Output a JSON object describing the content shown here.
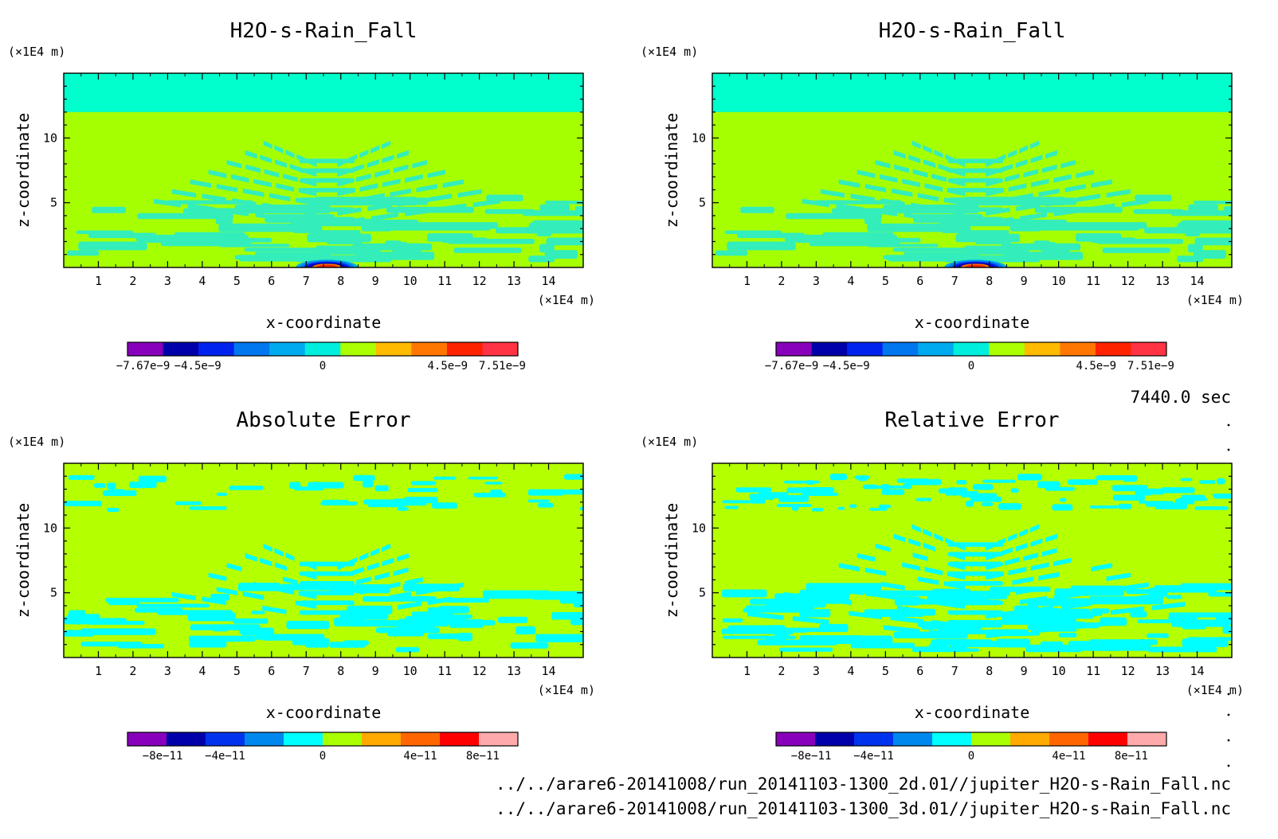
{
  "chart_data": [
    {
      "type": "heatmap",
      "title": "H2O-s-Rain_Fall",
      "xlabel": "x-coordinate",
      "ylabel": "z-coordinate",
      "x_unit": "(×1E4 m)",
      "y_unit": "(×1E4 m)",
      "xlim": [
        0,
        15
      ],
      "ylim": [
        0,
        15
      ],
      "x_ticks": [
        "1",
        "2",
        "3",
        "4",
        "5",
        "6",
        "7",
        "8",
        "9",
        "10",
        "11",
        "12",
        "13",
        "14"
      ],
      "y_ticks": [
        "5",
        "10"
      ],
      "colorbar_labels": [
        "−7.67e−9",
        "−4.5e−9",
        "0",
        "4.5e−9",
        "7.51e−9"
      ],
      "colorbar_colors": [
        "#8800bb",
        "#0000aa",
        "#0022ee",
        "#0077ee",
        "#00aaee",
        "#00eedd",
        "#aaff00",
        "#ffbb00",
        "#ff7700",
        "#ff2200",
        "#ff3344"
      ],
      "features": {
        "top_band_from": 12,
        "top_band_color": "#00ffcc",
        "field_color": "#a6ff00",
        "pattern_color": "#33eebb",
        "anomaly_center_x": 7.6,
        "anomaly_radius": 0.9
      }
    },
    {
      "type": "heatmap",
      "title": "H2O-s-Rain_Fall",
      "xlabel": "x-coordinate",
      "ylabel": "z-coordinate",
      "x_unit": "(×1E4 m)",
      "y_unit": "(×1E4 m)",
      "xlim": [
        0,
        15
      ],
      "ylim": [
        0,
        15
      ],
      "x_ticks": [
        "1",
        "2",
        "3",
        "4",
        "5",
        "6",
        "7",
        "8",
        "9",
        "10",
        "11",
        "12",
        "13",
        "14"
      ],
      "y_ticks": [
        "5",
        "10"
      ],
      "colorbar_labels": [
        "−7.67e−9",
        "−4.5e−9",
        "0",
        "4.5e−9",
        "7.51e−9"
      ],
      "colorbar_colors": [
        "#8800bb",
        "#0000aa",
        "#0022ee",
        "#0077ee",
        "#00aaee",
        "#00eedd",
        "#aaff00",
        "#ffbb00",
        "#ff7700",
        "#ff2200",
        "#ff3344"
      ],
      "features": {
        "top_band_from": 12,
        "top_band_color": "#00ffcc",
        "field_color": "#a6ff00",
        "pattern_color": "#33eebb",
        "anomaly_center_x": 7.6,
        "anomaly_radius": 0.9
      }
    },
    {
      "type": "heatmap",
      "title": "Absolute Error",
      "xlabel": "x-coordinate",
      "ylabel": "z-coordinate",
      "x_unit": "(×1E4 m)",
      "y_unit": "(×1E4 m)",
      "xlim": [
        0,
        15
      ],
      "ylim": [
        0,
        15
      ],
      "x_ticks": [
        "1",
        "2",
        "3",
        "4",
        "5",
        "6",
        "7",
        "8",
        "9",
        "10",
        "11",
        "12",
        "13",
        "14"
      ],
      "y_ticks": [
        "5",
        "10"
      ],
      "colorbar_labels": [
        "−8e−11",
        "−4e−11",
        "0",
        "4e−11",
        "8e−11"
      ],
      "colorbar_colors": [
        "#8800bb",
        "#0000aa",
        "#0033ee",
        "#0088ee",
        "#00ffff",
        "#aaff00",
        "#ffaa00",
        "#ff6600",
        "#ff0000",
        "#ffaaaa"
      ],
      "features": {
        "field_color": "#b4ff00",
        "pattern_color": "#00ffff"
      }
    },
    {
      "type": "heatmap",
      "title": "Relative Error",
      "xlabel": "x-coordinate",
      "ylabel": "z-coordinate",
      "x_unit": "(×1E4 m)",
      "y_unit": "(×1E4 m)",
      "xlim": [
        0,
        15
      ],
      "ylim": [
        0,
        15
      ],
      "x_ticks": [
        "1",
        "2",
        "3",
        "4",
        "5",
        "6",
        "7",
        "8",
        "9",
        "10",
        "11",
        "12",
        "13",
        "14"
      ],
      "y_ticks": [
        "5",
        "10"
      ],
      "colorbar_labels": [
        "−8e−11",
        "−4e−11",
        "0",
        "4e−11",
        "8e−11"
      ],
      "colorbar_colors": [
        "#8800bb",
        "#0000aa",
        "#0033ee",
        "#0088ee",
        "#00ffff",
        "#aaff00",
        "#ffaa00",
        "#ff6600",
        "#ff0000",
        "#ffaaaa"
      ],
      "features": {
        "field_color": "#b4ff00",
        "pattern_color": "#00ffff"
      }
    }
  ],
  "time_label": "7440.0 sec",
  "files": [
    "../../arare6-20141008/run_20141103-1300_2d.01//jupiter_H2O-s-Rain_Fall.nc",
    "../../arare6-20141008/run_20141103-1300_3d.01//jupiter_H2O-s-Rain_Fall.nc"
  ]
}
